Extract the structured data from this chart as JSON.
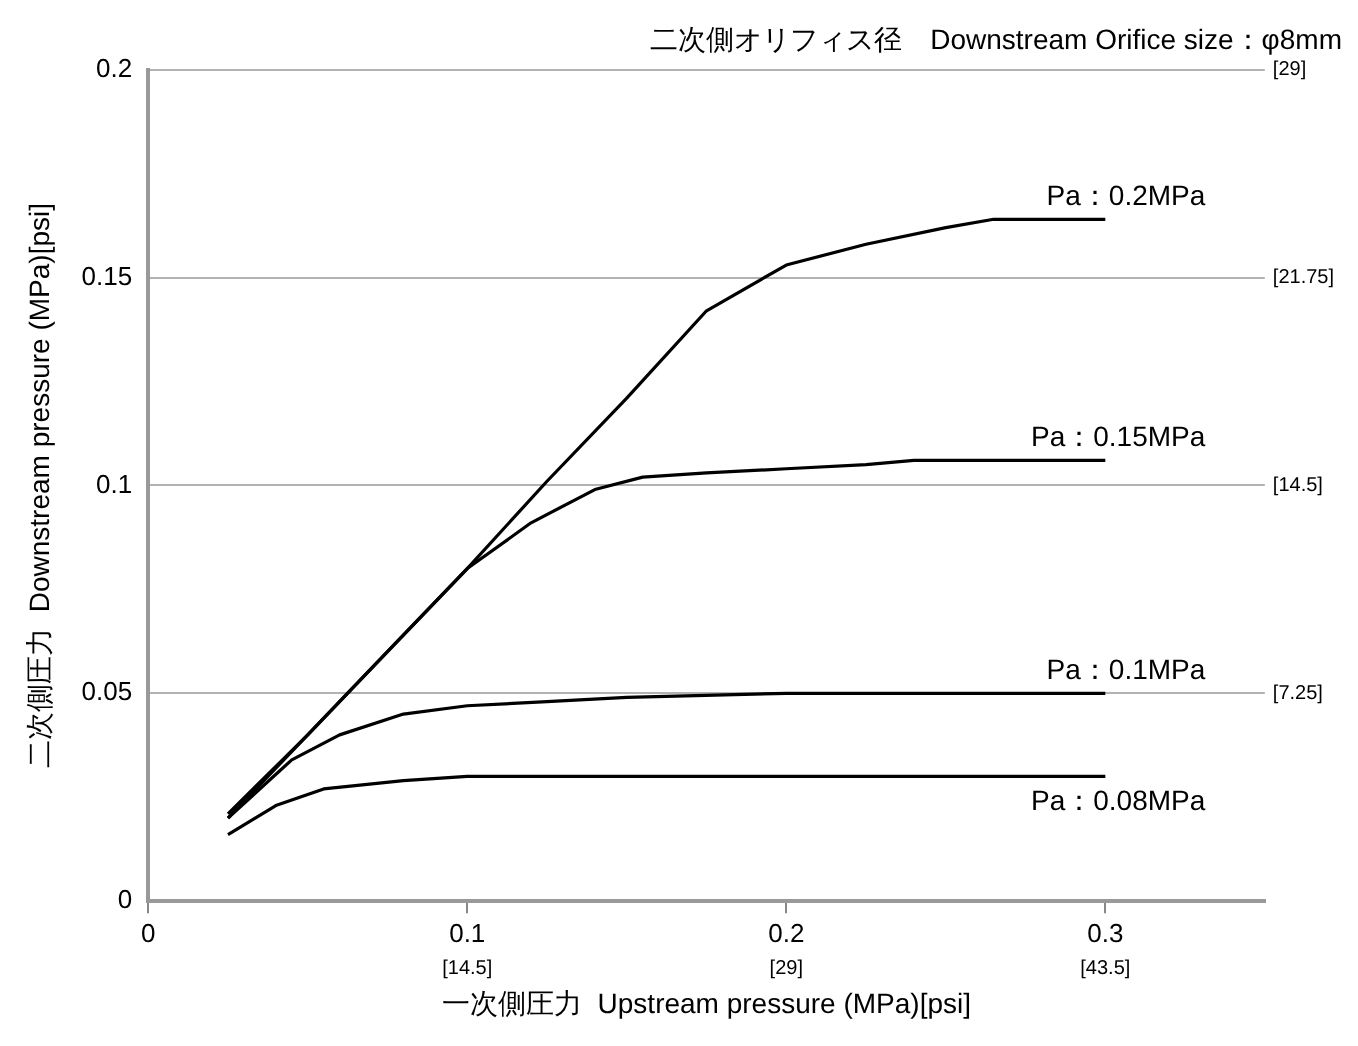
{
  "chart_data": {
    "type": "line",
    "title": "二次側オリフィス径　Downstream Orifice size：φ8mm",
    "xlabel": "一次側圧力  Upstream pressure (MPa)[psi]",
    "ylabel": "二次側圧力  Downstream pressure (MPa)[psi]",
    "xlim": [
      0,
      0.35
    ],
    "ylim": [
      0,
      0.2
    ],
    "xticks": [
      0,
      0.1,
      0.2,
      0.3
    ],
    "yticks": [
      0,
      0.05,
      0.1,
      0.15,
      0.2
    ],
    "x2lim": [
      0,
      50.75
    ],
    "x2ticks": [
      {
        "value": 14.5,
        "label": "[14.5]"
      },
      {
        "value": 29,
        "label": "[29]"
      },
      {
        "value": 43.5,
        "label": "[43.5]"
      }
    ],
    "y2lim": [
      0,
      29
    ],
    "y2ticks": [
      {
        "value": 7.25,
        "label": "[7.25]"
      },
      {
        "value": 14.5,
        "label": "[14.5]"
      },
      {
        "value": 21.75,
        "label": "[21.75]"
      },
      {
        "value": 29,
        "label": "[29]"
      }
    ],
    "grid": "y",
    "legend": false,
    "marker": "none",
    "line_style": "solid",
    "series": [
      {
        "name": "Pa：0.2MPa",
        "color": "#000000",
        "x": [
          0.025,
          0.05,
          0.075,
          0.1,
          0.125,
          0.15,
          0.175,
          0.2,
          0.225,
          0.25,
          0.265,
          0.3
        ],
        "values": [
          0.021,
          0.04,
          0.06,
          0.08,
          0.101,
          0.121,
          0.142,
          0.153,
          0.158,
          0.162,
          0.164,
          0.164
        ]
      },
      {
        "name": "Pa：0.15MPa",
        "color": "#000000",
        "x": [
          0.025,
          0.05,
          0.075,
          0.1,
          0.12,
          0.14,
          0.155,
          0.175,
          0.2,
          0.225,
          0.24,
          0.3
        ],
        "values": [
          0.02,
          0.04,
          0.06,
          0.08,
          0.091,
          0.099,
          0.102,
          0.103,
          0.104,
          0.105,
          0.106,
          0.106
        ]
      },
      {
        "name": "Pa：0.1MPa",
        "color": "#000000",
        "x": [
          0.025,
          0.045,
          0.06,
          0.08,
          0.1,
          0.125,
          0.15,
          0.2,
          0.25,
          0.3
        ],
        "values": [
          0.02,
          0.034,
          0.04,
          0.045,
          0.047,
          0.048,
          0.049,
          0.05,
          0.05,
          0.05
        ]
      },
      {
        "name": "Pa：0.08MPa",
        "color": "#000000",
        "x": [
          0.025,
          0.04,
          0.055,
          0.08,
          0.1,
          0.15,
          0.2,
          0.3
        ],
        "values": [
          0.016,
          0.023,
          0.027,
          0.029,
          0.03,
          0.03,
          0.03,
          0.03
        ]
      }
    ]
  }
}
